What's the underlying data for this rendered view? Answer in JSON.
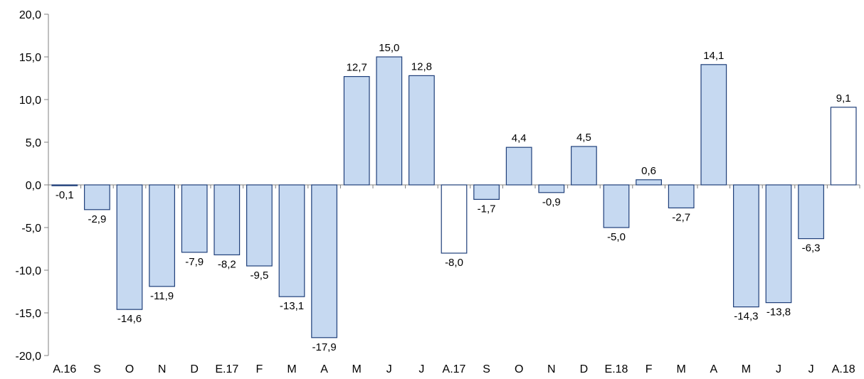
{
  "chart_data": {
    "type": "bar",
    "title": "",
    "xlabel": "",
    "ylabel": "",
    "ylim": [
      -20,
      20
    ],
    "yticks": [
      20,
      15,
      10,
      5,
      0,
      -5,
      -10,
      -15,
      -20
    ],
    "ytick_labels": [
      "20,0",
      "15,0",
      "10,0",
      "5,0",
      "0,0",
      "-5,0",
      "-10,0",
      "-15,0",
      "-20,0"
    ],
    "grid": false,
    "legend": "none",
    "categories": [
      "A.16",
      "S",
      "O",
      "N",
      "D",
      "E.17",
      "F",
      "M",
      "A",
      "M",
      "J",
      "J",
      "A.17",
      "S",
      "O",
      "N",
      "D",
      "E.18",
      "F",
      "M",
      "A",
      "M",
      "J",
      "J",
      "A.18"
    ],
    "values": [
      -0.1,
      -2.9,
      -14.6,
      -11.9,
      -7.9,
      -8.2,
      -9.5,
      -13.1,
      -17.9,
      12.7,
      15.0,
      12.8,
      -8.0,
      -1.7,
      4.4,
      -0.9,
      4.5,
      -5.0,
      0.6,
      -2.7,
      14.1,
      -14.3,
      -13.8,
      -6.3,
      9.1
    ],
    "value_labels": [
      "-0,1",
      "-2,9",
      "-14,6",
      "-11,9",
      "-7,9",
      "-8,2",
      "-9,5",
      "-13,1",
      "-17,9",
      "12,7",
      "15,0",
      "12,8",
      "-8,0",
      "-1,7",
      "4,4",
      "-0,9",
      "4,5",
      "-5,0",
      "0,6",
      "-2,7",
      "14,1",
      "-14,3",
      "-13,8",
      "-6,3",
      "9,1"
    ],
    "highlighted": [
      false,
      false,
      false,
      false,
      false,
      false,
      false,
      false,
      false,
      false,
      false,
      false,
      true,
      false,
      false,
      false,
      false,
      false,
      false,
      false,
      false,
      false,
      false,
      false,
      true
    ],
    "colors": {
      "bar_fill": "#c6d9f1",
      "bar_highlight_fill": "#ffffff",
      "bar_stroke": "#1f3f7a",
      "axis": "#808080"
    }
  }
}
